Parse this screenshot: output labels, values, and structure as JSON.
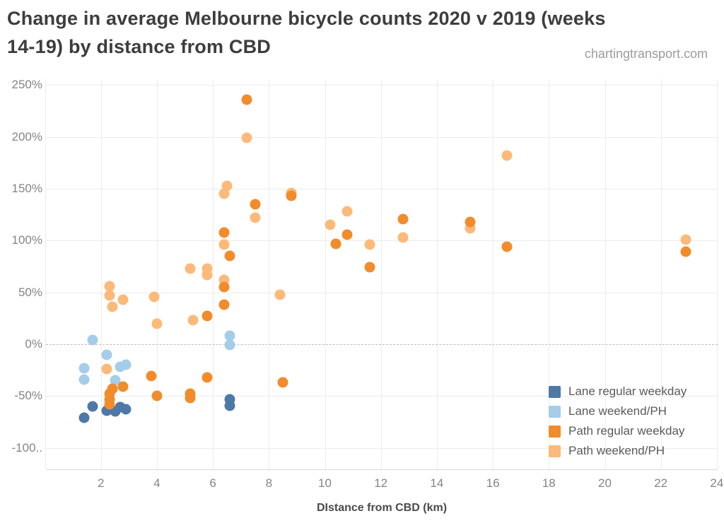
{
  "header": {
    "title_lines": [
      "Change in average Melbourne bicycle counts 2020 v 2019 (weeks",
      "14-19) by distance from CBD"
    ],
    "watermark": "chartingtransport.com"
  },
  "chart_data": {
    "type": "scatter",
    "title": "Change in average Melbourne bicycle counts 2020 v 2019 (weeks 14-19) by distance from CBD",
    "xlabel": "DIstance from CBD (km)",
    "ylabel": "",
    "x_ticks": [
      2,
      4,
      6,
      8,
      10,
      12,
      14,
      16,
      18,
      20,
      22,
      24
    ],
    "x_gridlines": [
      0,
      2,
      4,
      6,
      8,
      10,
      12,
      14,
      16,
      18,
      20,
      22,
      24
    ],
    "y_ticks": [
      {
        "value": 250,
        "label": "250%"
      },
      {
        "value": 200,
        "label": "200%"
      },
      {
        "value": 150,
        "label": "150%"
      },
      {
        "value": 100,
        "label": "100%"
      },
      {
        "value": 50,
        "label": "50%"
      },
      {
        "value": 0,
        "label": "0%"
      },
      {
        "value": -50,
        "label": "-50%"
      },
      {
        "value": -100,
        "label": "-100.."
      }
    ],
    "xlim": [
      0,
      24.2
    ],
    "ylim": [
      -121,
      256
    ],
    "grid": true,
    "zero_line_style": "dashed",
    "legend_position": "inside bottom-right",
    "legend": [
      {
        "label": "Lane regular weekday",
        "color": "#4e79a7"
      },
      {
        "label": "Lane weekend/PH",
        "color": "#a5cde9"
      },
      {
        "label": "Path regular weekday",
        "color": "#f28c2b"
      },
      {
        "label": "Path weekend/PH",
        "color": "#fcba7a"
      }
    ],
    "series": [
      {
        "name": "Lane regular weekday",
        "color": "#4e79a7",
        "points": [
          [
            1.4,
            -71
          ],
          [
            1.7,
            -60
          ],
          [
            2.2,
            -64
          ],
          [
            2.5,
            -65
          ],
          [
            2.7,
            -61
          ],
          [
            2.9,
            -63
          ],
          [
            6.6,
            -53
          ],
          [
            6.6,
            -59
          ]
        ]
      },
      {
        "name": "Lane weekend/PH",
        "color": "#a5cde9",
        "points": [
          [
            1.4,
            -23
          ],
          [
            1.4,
            -34
          ],
          [
            1.7,
            4
          ],
          [
            2.2,
            -10
          ],
          [
            2.5,
            -35
          ],
          [
            2.7,
            -22
          ],
          [
            2.9,
            -20
          ],
          [
            6.6,
            8
          ],
          [
            6.6,
            -1
          ]
        ]
      },
      {
        "name": "Path weekend/PH",
        "color": "#fcba7a",
        "points": [
          [
            2.2,
            -24
          ],
          [
            2.3,
            56
          ],
          [
            2.3,
            47
          ],
          [
            2.4,
            36
          ],
          [
            2.8,
            43
          ],
          [
            3.9,
            46
          ],
          [
            4.0,
            20
          ],
          [
            5.2,
            73
          ],
          [
            5.3,
            23
          ],
          [
            5.8,
            73
          ],
          [
            5.8,
            67
          ],
          [
            6.4,
            145
          ],
          [
            6.5,
            153
          ],
          [
            6.4,
            96
          ],
          [
            6.4,
            62
          ],
          [
            7.2,
            199
          ],
          [
            7.5,
            122
          ],
          [
            8.4,
            48
          ],
          [
            8.8,
            146
          ],
          [
            10.2,
            115
          ],
          [
            10.8,
            128
          ],
          [
            11.6,
            96
          ],
          [
            12.8,
            103
          ],
          [
            15.2,
            112
          ],
          [
            16.5,
            182
          ],
          [
            22.9,
            101
          ]
        ]
      },
      {
        "name": "Path regular weekday",
        "color": "#f28c2b",
        "points": [
          [
            2.4,
            -43
          ],
          [
            2.3,
            -48
          ],
          [
            2.3,
            -53
          ],
          [
            2.3,
            -58
          ],
          [
            2.8,
            -41
          ],
          [
            3.8,
            -31
          ],
          [
            4.0,
            -50
          ],
          [
            5.2,
            -48
          ],
          [
            5.2,
            -52
          ],
          [
            5.8,
            -32
          ],
          [
            5.8,
            27
          ],
          [
            6.4,
            108
          ],
          [
            6.6,
            85
          ],
          [
            6.4,
            55
          ],
          [
            6.4,
            38
          ],
          [
            7.2,
            236
          ],
          [
            7.5,
            135
          ],
          [
            8.5,
            -37
          ],
          [
            8.8,
            143
          ],
          [
            10.4,
            97
          ],
          [
            10.8,
            106
          ],
          [
            11.6,
            74
          ],
          [
            12.8,
            121
          ],
          [
            15.2,
            118
          ],
          [
            16.5,
            94
          ],
          [
            22.9,
            89
          ]
        ]
      }
    ]
  }
}
